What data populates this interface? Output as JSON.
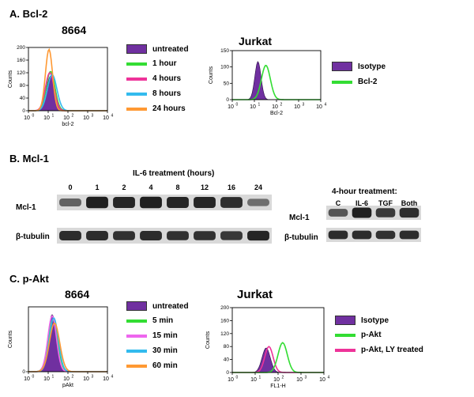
{
  "panel_a": {
    "title": "A.  Bcl-2",
    "left_plot": {
      "title": "8664",
      "ylabel": "Counts",
      "xlabel": "bcl-2",
      "yticks": [
        "0",
        "40",
        "80",
        "120",
        "160",
        "200"
      ],
      "xticks": [
        "10",
        "10",
        "10",
        "10",
        "10"
      ],
      "xexp": [
        "0",
        "1",
        "2",
        "3",
        "4"
      ],
      "legend": [
        {
          "label": "untreated",
          "color": "#7030a0",
          "type": "fill"
        },
        {
          "label": "1 hour",
          "color": "#33dd33",
          "type": "line"
        },
        {
          "label": "4 hours",
          "color": "#ee3399",
          "type": "line"
        },
        {
          "label": "8 hours",
          "color": "#33bbee",
          "type": "line"
        },
        {
          "label": "24 hours",
          "color": "#ff9933",
          "type": "line"
        }
      ]
    },
    "right_plot": {
      "title": "Jurkat",
      "ylabel": "Counts",
      "xlabel": "Bcl-2",
      "yticks": [
        "0",
        "50",
        "100",
        "150"
      ],
      "xticks": [
        "10",
        "10",
        "10",
        "10",
        "10"
      ],
      "xexp": [
        "0",
        "1",
        "2",
        "3",
        "4"
      ],
      "legend": [
        {
          "label": "Isotype",
          "color": "#7030a0",
          "type": "fill"
        },
        {
          "label": "Bcl-2",
          "color": "#33dd33",
          "type": "line"
        }
      ]
    }
  },
  "panel_b": {
    "title": "B.  Mcl-1",
    "left_blot": {
      "header": "IL-6 treatment (hours)",
      "lanes": [
        "0",
        "1",
        "2",
        "4",
        "8",
        "12",
        "16",
        "24"
      ],
      "row1_label": "Mcl-1",
      "row2_label": "β-tubulin",
      "mcl1_intensity": [
        0.45,
        0.95,
        0.9,
        0.95,
        0.9,
        0.9,
        0.85,
        0.35
      ],
      "tubulin_intensity": [
        0.85,
        0.85,
        0.8,
        0.85,
        0.8,
        0.8,
        0.75,
        0.9
      ]
    },
    "right_blot": {
      "header": "4-hour treatment:",
      "lanes": [
        "C",
        "IL-6",
        "TGF",
        "Both"
      ],
      "row1_label": "Mcl-1",
      "row2_label": "β-tubulin",
      "mcl1_intensity": [
        0.55,
        0.95,
        0.75,
        0.85
      ],
      "tubulin_intensity": [
        0.85,
        0.85,
        0.8,
        0.85
      ]
    }
  },
  "panel_c": {
    "title": "C.  p-Akt",
    "left_plot": {
      "title": "8664",
      "ylabel": "Counts",
      "xlabel": "pAkt",
      "yticks": [
        "0"
      ],
      "xticks": [
        "10",
        "10",
        "10",
        "10",
        "10"
      ],
      "xexp": [
        "0",
        "1",
        "2",
        "3",
        "4"
      ],
      "legend": [
        {
          "label": "untreated",
          "color": "#7030a0",
          "type": "fill"
        },
        {
          "label": "5 min",
          "color": "#33dd33",
          "type": "line"
        },
        {
          "label": "15 min",
          "color": "#ee66ee",
          "type": "line"
        },
        {
          "label": "30 min",
          "color": "#33bbee",
          "type": "line"
        },
        {
          "label": "60 min",
          "color": "#ff9933",
          "type": "line"
        }
      ]
    },
    "right_plot": {
      "title": "Jurkat",
      "ylabel": "Counts",
      "xlabel": "FL1-H",
      "yticks": [
        "0",
        "40",
        "80",
        "120",
        "160",
        "200"
      ],
      "xticks": [
        "10",
        "10",
        "10",
        "10",
        "10"
      ],
      "xexp": [
        "0",
        "1",
        "2",
        "3",
        "4"
      ],
      "legend": [
        {
          "label": "Isotype",
          "color": "#7030a0",
          "type": "fill"
        },
        {
          "label": "p-Akt",
          "color": "#33dd33",
          "type": "line"
        },
        {
          "label": "p-Akt, LY treated",
          "color": "#ee3399",
          "type": "line"
        }
      ]
    }
  }
}
